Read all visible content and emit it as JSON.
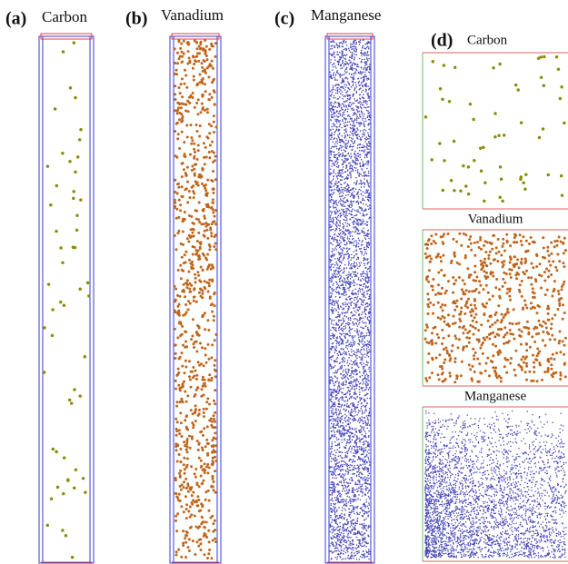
{
  "panels": [
    {
      "letter": "(a)",
      "element": "Carbon"
    },
    {
      "letter": "(b)",
      "element": "Vanadium"
    },
    {
      "letter": "(c)",
      "element": "Manganese"
    }
  ],
  "detail": {
    "letter": "(d)",
    "views": [
      {
        "element": "Carbon"
      },
      {
        "element": "Vanadium"
      },
      {
        "element": "Manganese"
      }
    ]
  }
}
